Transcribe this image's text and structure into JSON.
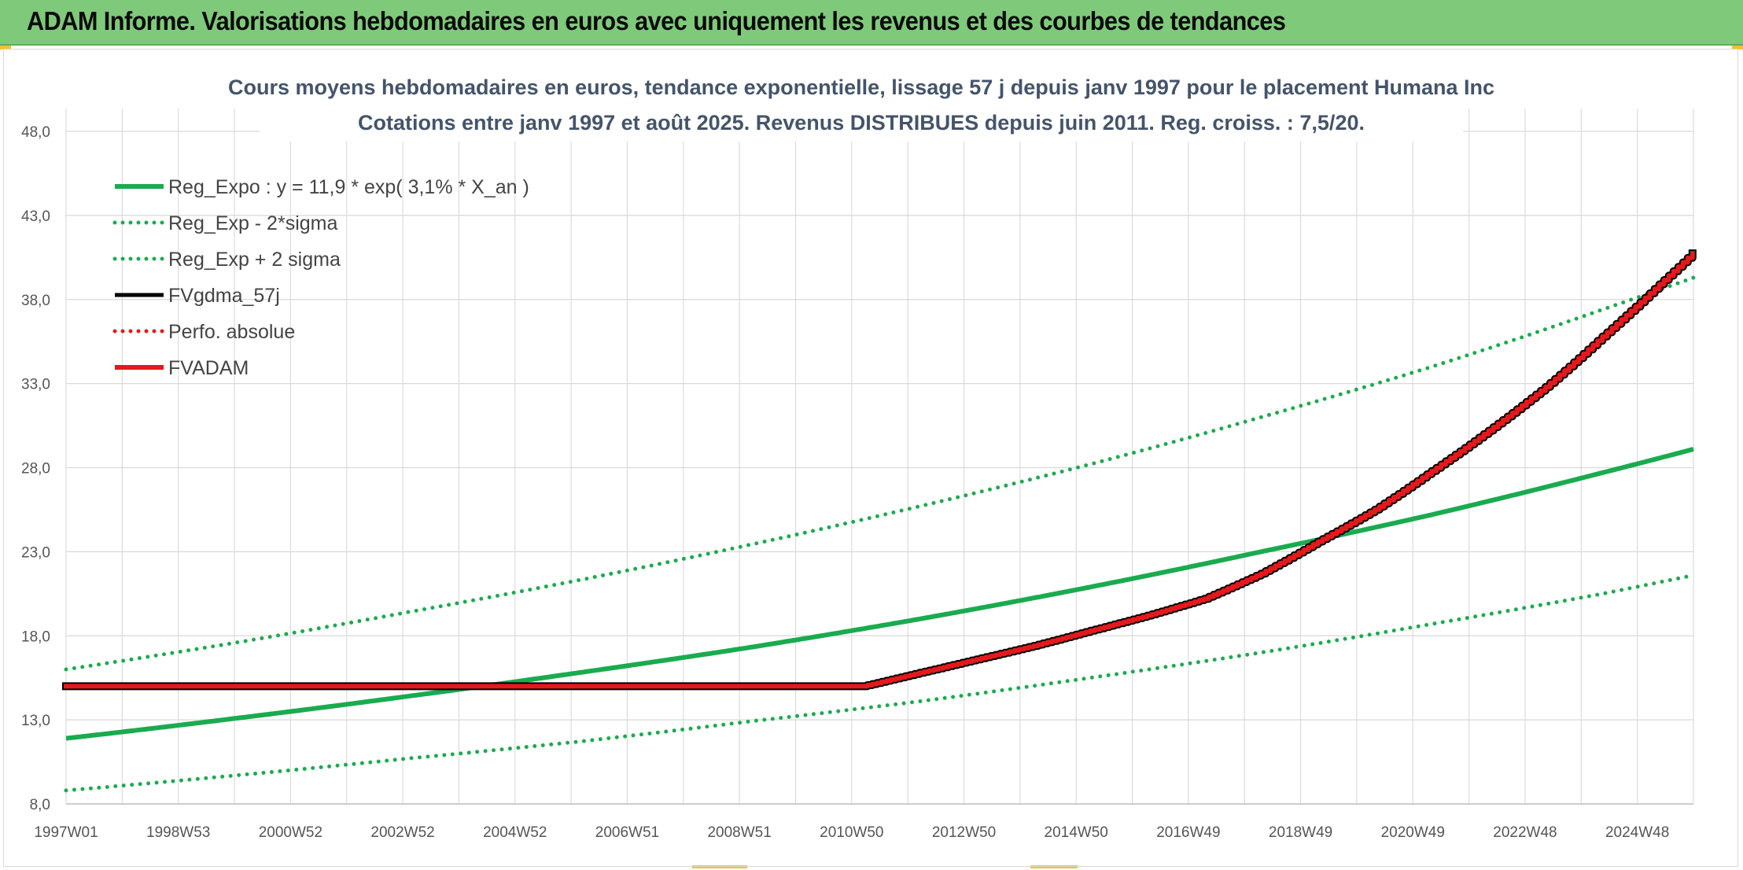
{
  "banner": {
    "title": "ADAM Informe. Valorisations hebdomadaires en euros avec uniquement les revenus et des courbes de tendances"
  },
  "colors": {
    "banner_bg": "#7fc97a",
    "trend_green": "#1aab4f",
    "adam_red": "#e3191c",
    "gdma_black": "#000000",
    "grid": "#d9d9d9",
    "title_text": "#44546a"
  },
  "chart_data": {
    "type": "line",
    "title": "Cours moyens hebdomadaires en euros, tendance exponentielle, lissage 57 j depuis janv 1997 pour le placement Humana Inc",
    "subtitle": "Cotations entre janv 1997 et août 2025. Revenus DISTRIBUES depuis juin 2011. Reg. croiss. : 7,5/20.",
    "xlabel": "",
    "ylabel": "",
    "x_tick_labels": [
      "1997W01",
      "1998W53",
      "2000W52",
      "2002W52",
      "2004W52",
      "2006W51",
      "2008W51",
      "2010W50",
      "2012W50",
      "2014W50",
      "2016W49",
      "2018W49",
      "2020W49",
      "2022W48",
      "2024W48"
    ],
    "x_range_years": [
      1997.0,
      2025.6
    ],
    "y_tick_labels": [
      "8,0",
      "13,0",
      "18,0",
      "23,0",
      "28,0",
      "33,0",
      "38,0",
      "43,0",
      "48,0"
    ],
    "y_ticks": [
      8,
      13,
      18,
      23,
      28,
      33,
      38,
      43,
      48
    ],
    "ylim": [
      8,
      48
    ],
    "grid": true,
    "legend_position": "top-left inside",
    "series": [
      {
        "name": "Reg_Expo : y = 11,9 * exp( 3,1% *  X_an )",
        "style": "solid-thick",
        "color": "#1aab4f",
        "x": [
          1997.0,
          2000.0,
          2003.0,
          2006.0,
          2009.0,
          2012.0,
          2015.0,
          2018.0,
          2021.0,
          2024.0,
          2025.6
        ],
        "y": [
          11.9,
          13.1,
          14.4,
          15.8,
          17.3,
          19.0,
          20.9,
          23.0,
          25.2,
          27.7,
          29.1
        ]
      },
      {
        "name": "Reg_Exp - 2*sigma",
        "style": "dotted",
        "color": "#1aab4f",
        "x": [
          1997.0,
          2000.0,
          2003.0,
          2006.0,
          2009.0,
          2012.0,
          2015.0,
          2018.0,
          2021.0,
          2024.0,
          2025.6
        ],
        "y": [
          8.8,
          9.7,
          10.7,
          11.7,
          12.9,
          14.1,
          15.5,
          17.0,
          18.7,
          20.5,
          21.6
        ]
      },
      {
        "name": "Reg_Exp + 2 sigma",
        "style": "dotted",
        "color": "#1aab4f",
        "x": [
          1997.0,
          2000.0,
          2003.0,
          2006.0,
          2009.0,
          2012.0,
          2015.0,
          2018.0,
          2021.0,
          2024.0,
          2025.6
        ],
        "y": [
          16.0,
          17.6,
          19.4,
          21.3,
          23.4,
          25.7,
          28.2,
          31.0,
          34.0,
          37.4,
          39.3
        ]
      },
      {
        "name": "FVgdma_57j",
        "style": "solid",
        "color": "#000000",
        "x": [
          1997.0,
          2011.0,
          2012.0,
          2013.0,
          2014.0,
          2015.0,
          2016.0,
          2017.0,
          2018.0,
          2019.0,
          2020.0,
          2021.0,
          2022.0,
          2023.0,
          2024.0,
          2025.0,
          2025.6
        ],
        "y": [
          15.0,
          15.0,
          15.8,
          16.6,
          17.4,
          18.3,
          19.2,
          20.2,
          21.7,
          23.6,
          25.5,
          27.8,
          30.2,
          32.8,
          35.8,
          38.9,
          40.8
        ]
      },
      {
        "name": "Perfo. absolue",
        "style": "dotted",
        "color": "#e3191c",
        "x": [],
        "y": []
      },
      {
        "name": "FVADAM",
        "style": "solid-thick-stepped",
        "color": "#e3191c",
        "x": [
          1997.0,
          2011.0,
          2012.0,
          2013.0,
          2014.0,
          2015.0,
          2016.0,
          2017.0,
          2018.0,
          2019.0,
          2020.0,
          2021.0,
          2022.0,
          2023.0,
          2024.0,
          2025.0,
          2025.6
        ],
        "y": [
          15.0,
          15.0,
          15.8,
          16.6,
          17.4,
          18.3,
          19.2,
          20.2,
          21.7,
          23.6,
          25.5,
          27.8,
          30.2,
          32.8,
          35.8,
          38.9,
          40.8
        ]
      }
    ]
  }
}
